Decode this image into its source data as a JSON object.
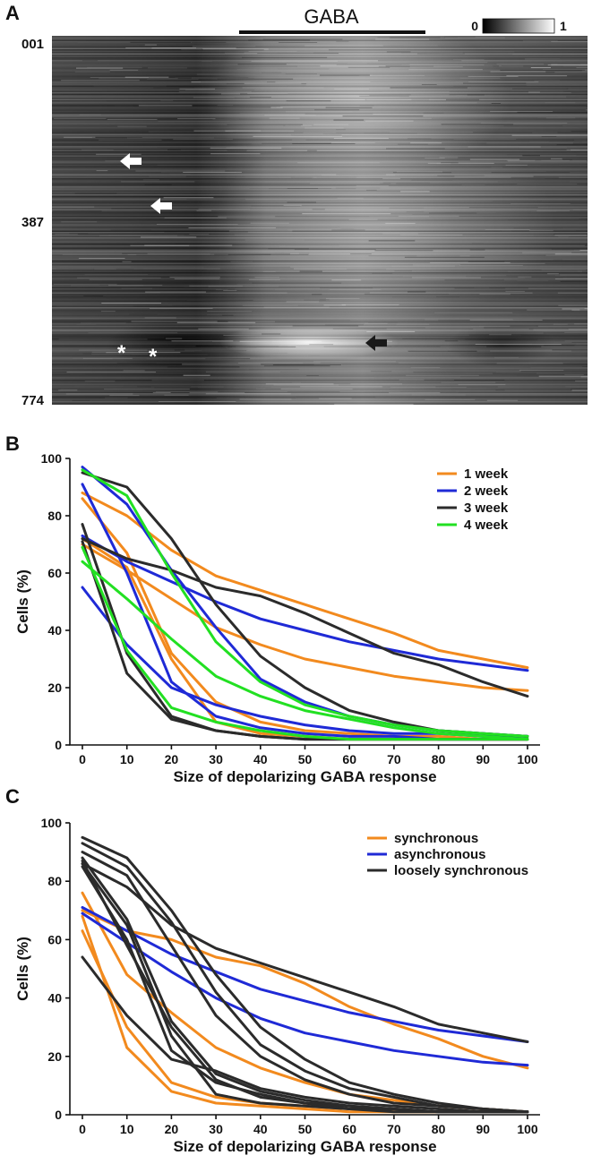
{
  "panel_a": {
    "letter": "A",
    "stimulus_label": "GABA",
    "scale_min_label": "0",
    "scale_max_label": "1",
    "row_labels": [
      "001",
      "387",
      "774"
    ],
    "arrow_annotations": [
      {
        "color": "white",
        "direction": "left",
        "name": "white-arrow-1"
      },
      {
        "color": "white",
        "direction": "left",
        "name": "white-arrow-2"
      },
      {
        "color": "black",
        "direction": "left",
        "name": "black-arrow"
      }
    ],
    "asterisks": [
      "*",
      "*"
    ]
  },
  "chart_data": [
    {
      "type": "line",
      "panel": "B",
      "xlabel": "Size of depolarizing GABA response",
      "ylabel": "Cells (%)",
      "xlim": [
        0,
        100
      ],
      "ylim": [
        0,
        100
      ],
      "x": [
        0,
        10,
        20,
        30,
        40,
        50,
        60,
        70,
        80,
        90,
        100
      ],
      "xticks": [
        "0",
        "10",
        "20",
        "30",
        "40",
        "50",
        "60",
        "70",
        "80",
        "90",
        "100"
      ],
      "yticks": [
        "0",
        "20",
        "40",
        "60",
        "80",
        "100"
      ],
      "legend": [
        {
          "label": "1 week",
          "color": "#F28A1E"
        },
        {
          "label": "2 week",
          "color": "#1F2AD6"
        },
        {
          "label": "3 week",
          "color": "#2B2B2B"
        },
        {
          "label": "4 week",
          "color": "#22E022"
        }
      ],
      "series": [
        {
          "name": "1 week",
          "color": "#F28A1E",
          "values": [
            88,
            80,
            68,
            59,
            54,
            49,
            44,
            39,
            33,
            30,
            27
          ]
        },
        {
          "name": "1 week",
          "color": "#F28A1E",
          "values": [
            70,
            61,
            51,
            41,
            35,
            30,
            27,
            24,
            22,
            20,
            19
          ]
        },
        {
          "name": "1 week",
          "color": "#F28A1E",
          "values": [
            86,
            67,
            32,
            15,
            8,
            5,
            4,
            3,
            3,
            2,
            2
          ]
        },
        {
          "name": "1 week",
          "color": "#F28A1E",
          "values": [
            72,
            62,
            30,
            8,
            4,
            3,
            2,
            2,
            2,
            2,
            2
          ]
        },
        {
          "name": "2 week",
          "color": "#1F2AD6",
          "values": [
            73,
            64,
            57,
            50,
            44,
            40,
            36,
            33,
            30,
            28,
            26
          ]
        },
        {
          "name": "2 week",
          "color": "#1F2AD6",
          "values": [
            97,
            84,
            61,
            41,
            23,
            15,
            10,
            7,
            5,
            4,
            3
          ]
        },
        {
          "name": "2 week",
          "color": "#1F2AD6",
          "values": [
            91,
            60,
            22,
            10,
            6,
            4,
            3,
            3,
            2,
            2,
            2
          ]
        },
        {
          "name": "2 week",
          "color": "#1F2AD6",
          "values": [
            55,
            35,
            20,
            14,
            10,
            7,
            5,
            4,
            4,
            3,
            3
          ]
        },
        {
          "name": "3 week",
          "color": "#2B2B2B",
          "values": [
            95,
            90,
            72,
            49,
            31,
            20,
            12,
            8,
            5,
            4,
            3
          ]
        },
        {
          "name": "3 week",
          "color": "#2B2B2B",
          "values": [
            72,
            65,
            61,
            55,
            52,
            46,
            39,
            32,
            28,
            22,
            17
          ]
        },
        {
          "name": "3 week",
          "color": "#2B2B2B",
          "values": [
            77,
            32,
            10,
            5,
            3,
            2,
            2,
            2,
            2,
            2,
            2
          ]
        },
        {
          "name": "3 week",
          "color": "#2B2B2B",
          "values": [
            71,
            25,
            9,
            5,
            3,
            2,
            2,
            2,
            2,
            2,
            2
          ]
        },
        {
          "name": "4 week",
          "color": "#22E022",
          "values": [
            96,
            87,
            60,
            36,
            22,
            14,
            10,
            7,
            5,
            4,
            3
          ]
        },
        {
          "name": "4 week",
          "color": "#22E022",
          "values": [
            64,
            51,
            37,
            24,
            17,
            12,
            9,
            6,
            4,
            3,
            2
          ]
        },
        {
          "name": "4 week",
          "color": "#22E022",
          "values": [
            69,
            33,
            13,
            8,
            5,
            3,
            2,
            2,
            2,
            2,
            2
          ]
        }
      ]
    },
    {
      "type": "line",
      "panel": "C",
      "xlabel": "Size of depolarizing GABA response",
      "ylabel": "Cells (%)",
      "xlim": [
        0,
        100
      ],
      "ylim": [
        0,
        100
      ],
      "x": [
        0,
        10,
        20,
        30,
        40,
        50,
        60,
        70,
        80,
        90,
        100
      ],
      "xticks": [
        "0",
        "10",
        "20",
        "30",
        "40",
        "50",
        "60",
        "70",
        "80",
        "90",
        "100"
      ],
      "yticks": [
        "0",
        "20",
        "40",
        "60",
        "80",
        "100"
      ],
      "legend": [
        {
          "label": "synchronous",
          "color": "#F28A1E"
        },
        {
          "label": "asynchronous",
          "color": "#1F2AD6"
        },
        {
          "label": "loosely synchronous",
          "color": "#2B2B2B"
        }
      ],
      "series": [
        {
          "name": "synchronous",
          "color": "#F28A1E",
          "values": [
            70,
            63,
            60,
            54,
            51,
            45,
            37,
            31,
            26,
            20,
            16
          ]
        },
        {
          "name": "synchronous",
          "color": "#F28A1E",
          "values": [
            76,
            48,
            35,
            23,
            16,
            11,
            7,
            5,
            3,
            2,
            1
          ]
        },
        {
          "name": "synchronous",
          "color": "#F28A1E",
          "values": [
            63,
            30,
            11,
            6,
            4,
            3,
            2,
            1,
            1,
            1,
            1
          ]
        },
        {
          "name": "synchronous",
          "color": "#F28A1E",
          "values": [
            68,
            23,
            8,
            4,
            3,
            2,
            1,
            1,
            1,
            1,
            1
          ]
        },
        {
          "name": "asynchronous",
          "color": "#1F2AD6",
          "values": [
            71,
            63,
            55,
            49,
            43,
            39,
            35,
            32,
            29,
            27,
            25
          ]
        },
        {
          "name": "asynchronous",
          "color": "#1F2AD6",
          "values": [
            69,
            59,
            49,
            40,
            33,
            28,
            25,
            22,
            20,
            18,
            17
          ]
        },
        {
          "name": "loosely synchronous",
          "color": "#2B2B2B",
          "values": [
            95,
            88,
            70,
            48,
            30,
            19,
            11,
            7,
            4,
            2,
            1
          ]
        },
        {
          "name": "loosely synchronous",
          "color": "#2B2B2B",
          "values": [
            93,
            85,
            66,
            42,
            24,
            15,
            9,
            6,
            3,
            2,
            1
          ]
        },
        {
          "name": "loosely synchronous",
          "color": "#2B2B2B",
          "values": [
            90,
            82,
            58,
            34,
            20,
            12,
            7,
            4,
            3,
            2,
            1
          ]
        },
        {
          "name": "loosely synchronous",
          "color": "#2B2B2B",
          "values": [
            86,
            78,
            65,
            57,
            52,
            47,
            42,
            37,
            31,
            28,
            25
          ]
        },
        {
          "name": "loosely synchronous",
          "color": "#2B2B2B",
          "values": [
            88,
            67,
            32,
            14,
            8,
            5,
            3,
            2,
            1,
            1,
            1
          ]
        },
        {
          "name": "loosely synchronous",
          "color": "#2B2B2B",
          "values": [
            85,
            60,
            22,
            11,
            7,
            4,
            3,
            2,
            1,
            1,
            1
          ]
        },
        {
          "name": "loosely synchronous",
          "color": "#2B2B2B",
          "values": [
            87,
            58,
            30,
            12,
            6,
            4,
            2,
            2,
            1,
            1,
            1
          ]
        },
        {
          "name": "loosely synchronous",
          "color": "#2B2B2B",
          "values": [
            54,
            34,
            19,
            15,
            9,
            6,
            4,
            3,
            2,
            1,
            1
          ]
        },
        {
          "name": "loosely synchronous",
          "color": "#2B2B2B",
          "values": [
            86,
            65,
            27,
            7,
            4,
            3,
            2,
            1,
            1,
            1,
            1
          ]
        }
      ]
    }
  ]
}
